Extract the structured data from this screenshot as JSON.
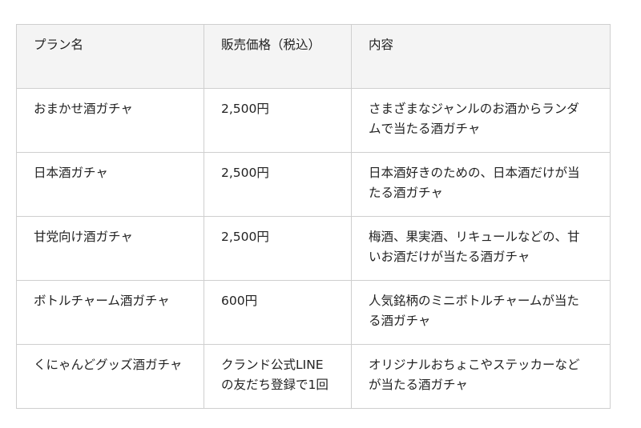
{
  "table": {
    "headers": [
      "プラン名",
      "販売価格（税込）",
      "内容"
    ],
    "rows": [
      {
        "plan": "おまかせ酒ガチャ",
        "price": "2,500円",
        "content": "さまざまなジャンルのお酒からランダムで当たる酒ガチャ"
      },
      {
        "plan": "日本酒ガチャ",
        "price": "2,500円",
        "content": "日本酒好きのための、日本酒だけが当たる酒ガチャ"
      },
      {
        "plan": "甘党向け酒ガチャ",
        "price": "2,500円",
        "content": "梅酒、果実酒、リキュールなどの、甘いお酒だけが当たる酒ガチャ"
      },
      {
        "plan": "ボトルチャーム酒ガチャ",
        "price": "600円",
        "content": "人気銘柄のミニボトルチャームが当たる酒ガチャ"
      },
      {
        "plan": "くにゃんどグッズ酒ガチャ",
        "price": "クランド公式LINEの友だち登録で1回",
        "content": "オリジナルおちょこやステッカーなどが当たる酒ガチャ"
      }
    ]
  }
}
